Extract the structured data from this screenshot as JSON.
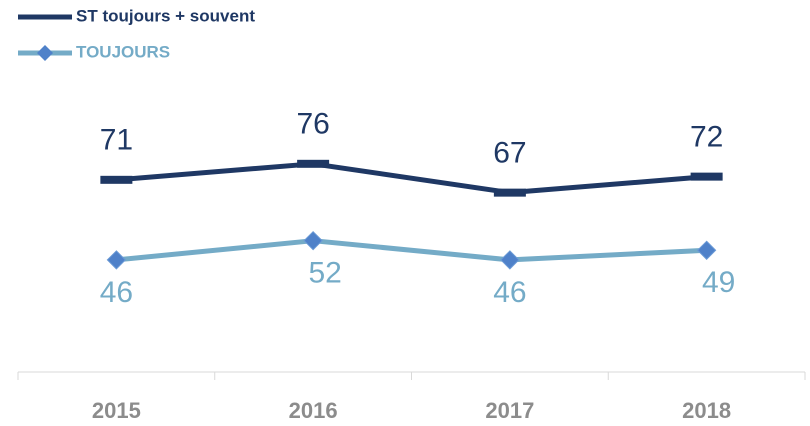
{
  "chart_data": {
    "type": "line",
    "categories": [
      "2015",
      "2016",
      "2017",
      "2018"
    ],
    "series": [
      {
        "name": "ST toujours + souvent",
        "color": "#1f3864",
        "values": [
          71,
          76,
          67,
          72
        ],
        "label_color": "#1f3864",
        "label_position": "above"
      },
      {
        "name": "TOUJOURS",
        "color": "#74abc7",
        "marker_color": "#4f81c9",
        "values": [
          46,
          52,
          46,
          49
        ],
        "label_color": "#74abc7",
        "label_position": "below"
      }
    ],
    "ylim": [
      11,
      80
    ],
    "legend": "top-left",
    "grid": false
  }
}
